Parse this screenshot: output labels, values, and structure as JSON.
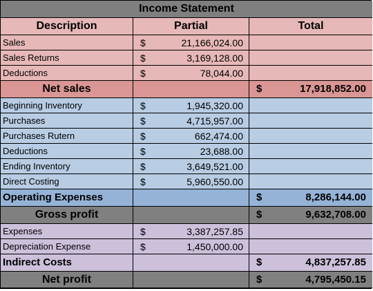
{
  "title": "Income Statement",
  "headers": {
    "description": "Description",
    "partial": "Partial",
    "total": "Total"
  },
  "currency": "$",
  "sales": [
    {
      "label": "Sales",
      "partial": "21,166,024.00"
    },
    {
      "label": "Sales Returns",
      "partial": "3,169,128.00"
    },
    {
      "label": "Deductions",
      "partial": "78,044.00"
    }
  ],
  "net_sales": {
    "label": "Net sales",
    "total": "17,918,852.00"
  },
  "costing": [
    {
      "label": "Beginning Inventory",
      "partial": "1,945,320.00"
    },
    {
      "label": "Purchases",
      "partial": "4,715,957.00"
    },
    {
      "label": "Purchases Rutern",
      "partial": "662,474.00"
    },
    {
      "label": "Deductions",
      "partial": "23,688.00"
    },
    {
      "label": "Ending Inventory",
      "partial": "3,649,521.00"
    },
    {
      "label": "Direct Costing",
      "partial": "5,960,550.00"
    }
  ],
  "operating_expenses": {
    "label": "Operating Expenses",
    "total": "8,286,144.00"
  },
  "gross_profit": {
    "label": "Gross profit",
    "total": "9,632,708.00"
  },
  "expenses": [
    {
      "label": "Expenses",
      "partial": "3,387,257.85"
    },
    {
      "label": "Depreciation Expense",
      "partial": "1,450,000.00"
    }
  ],
  "indirect_costs": {
    "label": "Indirect Costs",
    "total": "4,837,257.85"
  },
  "net_profit": {
    "label": "Net profit",
    "total": "4,795,450.15"
  },
  "colors": {
    "title": "#7f7f7f",
    "sales_section": "#e6b8b7",
    "net_sales_row": "#da9694",
    "costing_section": "#b8cce4",
    "operating_row": "#95b3d7",
    "profit_rows": "#808080",
    "expenses_section": "#ccc0da"
  }
}
